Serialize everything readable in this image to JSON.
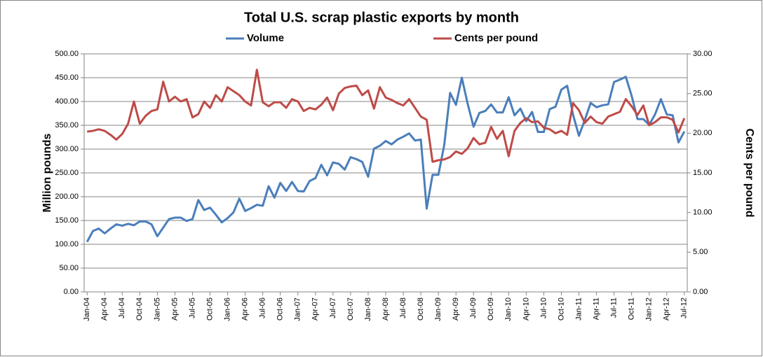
{
  "chart_data": {
    "type": "line",
    "title": "Total U.S. scrap plastic exports by month",
    "ylabel": "Million pounds",
    "y2label": "Cents per pound",
    "categories": [
      "Jan-04",
      null,
      null,
      "Apr-04",
      null,
      null,
      "Jul-04",
      null,
      null,
      "Oct-04",
      null,
      null,
      "Jan-05",
      null,
      null,
      "Apr-05",
      null,
      null,
      "Jul-05",
      null,
      null,
      "Oct-05",
      null,
      null,
      "Jan-06",
      null,
      null,
      "Apr-06",
      null,
      null,
      "Jul-06",
      null,
      null,
      "Oct-06",
      null,
      null,
      "Jan-07",
      null,
      null,
      "Apr-07",
      null,
      null,
      "Jul-07",
      null,
      null,
      "Oct-07",
      null,
      null,
      "Jan-08",
      null,
      null,
      "Apr-08",
      null,
      null,
      "Jul-08",
      null,
      null,
      "Oct-08",
      null,
      null,
      "Jan-09",
      null,
      null,
      "Apr-09",
      null,
      null,
      "Jul-09",
      null,
      null,
      "Oct-09",
      null,
      null,
      "Jan-10",
      null,
      null,
      "Apr-10",
      null,
      null,
      "Jul-10",
      null,
      null,
      "Oct-10",
      null,
      null,
      "Jan-11",
      null,
      null,
      "Apr-11",
      null,
      null,
      "Jul-11",
      null,
      null,
      "Oct-11",
      null,
      null,
      "Jan-12",
      null,
      null,
      "Apr-12",
      null,
      null,
      "Jul-12"
    ],
    "series": [
      {
        "name": "Volume",
        "color": "#4a7ebb",
        "values": [
          105,
          128,
          133,
          123,
          133,
          142,
          139,
          143,
          140,
          148,
          148,
          142,
          117,
          135,
          153,
          156,
          156,
          149,
          153,
          193,
          172,
          177,
          162,
          146,
          155,
          167,
          196,
          170,
          176,
          183,
          181,
          222,
          198,
          229,
          212,
          231,
          212,
          211,
          233,
          239,
          267,
          245,
          272,
          269,
          257,
          283,
          279,
          273,
          242,
          301,
          307,
          317,
          310,
          320,
          326,
          333,
          318,
          320,
          175,
          246,
          246,
          309,
          418,
          393,
          450,
          395,
          347,
          376,
          380,
          394,
          377,
          377,
          409,
          371,
          385,
          359,
          378,
          336,
          336,
          384,
          389,
          425,
          433,
          372,
          328,
          361,
          397,
          388,
          392,
          394,
          441,
          446,
          452,
          412,
          363,
          363,
          351,
          373,
          405,
          373,
          371,
          314,
          337
        ]
      },
      {
        "name": "Cents per pound",
        "color": "#be4b48",
        "axis": "y2",
        "values": [
          20.2,
          20.3,
          20.5,
          20.3,
          19.8,
          19.2,
          19.9,
          21.2,
          24.0,
          21.2,
          22.2,
          22.8,
          23.0,
          26.5,
          24.0,
          24.6,
          24.0,
          24.3,
          22.0,
          22.4,
          24.0,
          23.2,
          24.8,
          24.0,
          25.8,
          25.3,
          24.8,
          24.0,
          23.5,
          28.0,
          23.9,
          23.4,
          23.9,
          23.9,
          23.2,
          24.3,
          24.0,
          22.8,
          23.2,
          23.0,
          23.6,
          24.5,
          22.9,
          25.0,
          25.7,
          25.9,
          26.0,
          24.8,
          25.4,
          23.1,
          25.8,
          24.5,
          24.2,
          23.8,
          23.5,
          24.3,
          23.2,
          22.1,
          21.7,
          16.4,
          16.6,
          16.7,
          17.0,
          17.7,
          17.4,
          18.1,
          19.4,
          18.6,
          18.8,
          20.8,
          19.3,
          20.3,
          17.1,
          20.3,
          21.3,
          21.9,
          21.4,
          21.5,
          20.7,
          20.5,
          20.0,
          20.3,
          19.8,
          23.8,
          22.9,
          21.3,
          22.1,
          21.4,
          21.2,
          22.1,
          22.4,
          22.7,
          24.3,
          23.4,
          22.3,
          23.5,
          21.0,
          21.4,
          22.0,
          22.0,
          21.7,
          20.1,
          21.9
        ]
      }
    ],
    "ylim": [
      0,
      500
    ],
    "yticks": [
      {
        "value": 0,
        "label": "0.00"
      },
      {
        "value": 50,
        "label": "50.00"
      },
      {
        "value": 100,
        "label": "100.00"
      },
      {
        "value": 150,
        "label": "150.00"
      },
      {
        "value": 200,
        "label": "200.00"
      },
      {
        "value": 250,
        "label": "250.00"
      },
      {
        "value": 300,
        "label": "300.00"
      },
      {
        "value": 350,
        "label": "350.00"
      },
      {
        "value": 400,
        "label": "400.00"
      },
      {
        "value": 450,
        "label": "450.00"
      },
      {
        "value": 500,
        "label": "500.00"
      }
    ],
    "y2lim": [
      0,
      30
    ],
    "y2ticks": [
      {
        "value": 0,
        "label": "0.00"
      },
      {
        "value": 5,
        "label": "5.00"
      },
      {
        "value": 10,
        "label": "10.00"
      },
      {
        "value": 15,
        "label": "15.00"
      },
      {
        "value": 20,
        "label": "20.00"
      },
      {
        "value": 25,
        "label": "25.00"
      },
      {
        "value": 30,
        "label": "30.00"
      }
    ],
    "grid": true,
    "legend": "top"
  }
}
